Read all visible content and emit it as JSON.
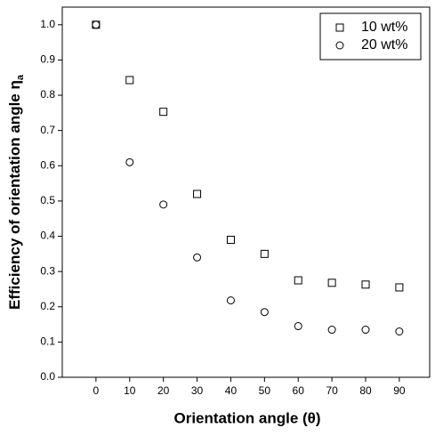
{
  "chart_data": {
    "type": "scatter",
    "x_label": "Orientation angle (θ)",
    "y_label": "Efficiency of orientation angle η",
    "y_label_subscript": "a",
    "x": [
      0,
      10,
      20,
      30,
      40,
      50,
      60,
      70,
      80,
      90
    ],
    "series": [
      {
        "name": "10 wt%",
        "marker": "square",
        "color": "#000000",
        "values": [
          1.0,
          0.843,
          0.753,
          0.52,
          0.39,
          0.35,
          0.275,
          0.268,
          0.263,
          0.255
        ]
      },
      {
        "name": "20 wt%",
        "marker": "circle",
        "color": "#000000",
        "values": [
          1.0,
          0.61,
          0.49,
          0.34,
          0.218,
          0.185,
          0.145,
          0.135,
          0.135,
          0.13
        ]
      }
    ],
    "xlim": [
      -10,
      99
    ],
    "ylim": [
      0,
      1.05
    ],
    "xticks": [
      0,
      10,
      20,
      30,
      40,
      50,
      60,
      70,
      80,
      90
    ],
    "yticks": [
      {
        "value": 0,
        "label": "0.0"
      },
      0.1,
      0.2,
      0.3,
      0.4,
      0.5,
      0.6,
      0.7,
      0.8,
      0.9,
      {
        "value": 1,
        "label": "1.0"
      }
    ],
    "legend": "upper right"
  }
}
